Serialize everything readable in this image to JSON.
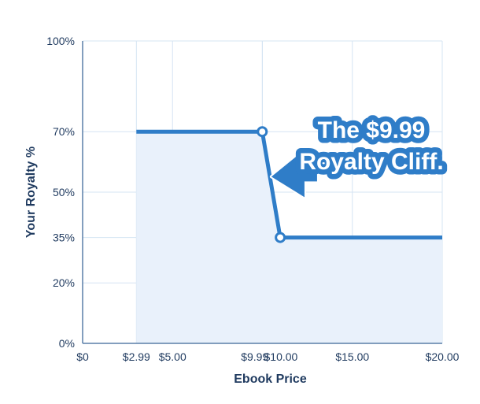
{
  "chart_data": {
    "type": "line",
    "title": "",
    "xlabel": "Ebook Price",
    "ylabel": "Your Royalty %",
    "xlim": [
      0,
      20
    ],
    "ylim": [
      0,
      100
    ],
    "x_ticks": [
      {
        "value": 0,
        "label": "$0"
      },
      {
        "value": 2.99,
        "label": "$2.99"
      },
      {
        "value": 5,
        "label": "$5.00"
      },
      {
        "value": 9.99,
        "label": "$9.99"
      },
      {
        "value": 10,
        "label": "$10.00"
      },
      {
        "value": 15,
        "label": "$15.00"
      },
      {
        "value": 20,
        "label": "$20.00"
      }
    ],
    "y_ticks": [
      {
        "value": 0,
        "label": "0%"
      },
      {
        "value": 20,
        "label": "20%"
      },
      {
        "value": 35,
        "label": "35%"
      },
      {
        "value": 50,
        "label": "50%"
      },
      {
        "value": 70,
        "label": "70%"
      },
      {
        "value": 100,
        "label": "100%"
      }
    ],
    "grid": true,
    "series": [
      {
        "x": [
          2.99,
          9.99,
          10.99,
          20
        ],
        "y": [
          70,
          70,
          35,
          35
        ],
        "markers": [
          {
            "x": 9.99,
            "y": 70
          },
          {
            "x": 10.99,
            "y": 35
          }
        ]
      }
    ],
    "annotations": [
      {
        "lines": [
          "The $9.99",
          "Royalty Cliff."
        ],
        "points_to": {
          "x": 10.5,
          "y": 52
        }
      }
    ],
    "colors": {
      "line": "#2f7dc8",
      "fill": "#e9f1fb",
      "grid": "#d5e4f3",
      "axis": "#5a7fa8",
      "text": "#1f3a5f",
      "callout": "#2f7dc8"
    }
  }
}
